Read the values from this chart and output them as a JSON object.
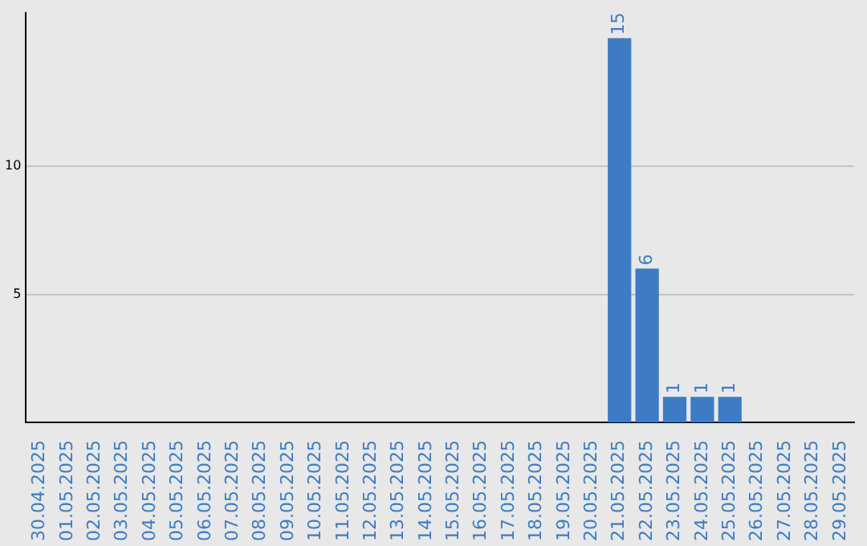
{
  "chart_data": {
    "type": "bar",
    "categories": [
      "30.04.2025",
      "01.05.2025",
      "02.05.2025",
      "03.05.2025",
      "04.05.2025",
      "05.05.2025",
      "06.05.2025",
      "07.05.2025",
      "08.05.2025",
      "09.05.2025",
      "10.05.2025",
      "11.05.2025",
      "12.05.2025",
      "13.05.2025",
      "14.05.2025",
      "15.05.2025",
      "16.05.2025",
      "17.05.2025",
      "18.05.2025",
      "19.05.2025",
      "20.05.2025",
      "21.05.2025",
      "22.05.2025",
      "23.05.2025",
      "24.05.2025",
      "25.05.2025",
      "26.05.2025",
      "27.05.2025",
      "28.05.2025",
      "29.05.2025"
    ],
    "values": [
      null,
      null,
      null,
      null,
      null,
      null,
      null,
      null,
      null,
      null,
      null,
      null,
      null,
      null,
      null,
      null,
      null,
      null,
      null,
      null,
      null,
      15,
      6,
      1,
      1,
      1,
      null,
      null,
      null,
      null
    ],
    "color": "#3d7cc4",
    "ylim": [
      0,
      16
    ],
    "yticks": [
      5,
      10
    ],
    "grid": "y",
    "data_labels": true,
    "legend": false
  }
}
